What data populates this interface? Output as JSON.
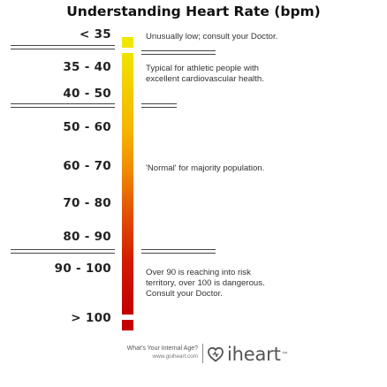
{
  "title": "Understanding Heart Rate (bpm)",
  "ranges": [
    "< 35",
    "35 - 40",
    "40 - 50",
    "50 - 60",
    "60 - 70",
    "70 - 80",
    "80 - 90",
    "90 - 100",
    "> 100"
  ],
  "descriptions": {
    "low": "Unusually low; consult your Doctor.",
    "athletic_line1": "Typical for athletic people with",
    "athletic_line2": "excellent cardiovascular health.",
    "normal": "'Normal' for majority population.",
    "high_line1": "Over 90 is reaching into risk",
    "high_line2": "territory, over 100 is dangerous.",
    "high_line3": "Consult your Doctor."
  },
  "footer": {
    "question": "What's Your Internal Age?",
    "url": "www.goiheart.com",
    "brand": "iheart",
    "trademark": "™"
  },
  "colors": {
    "scale_top": "#f2e600",
    "scale_middle": "#f08a00",
    "scale_bottom": "#c40000",
    "text": "#222222",
    "logo": "#555555"
  },
  "icons": {
    "logo_mark": "iheart-logo-icon"
  }
}
